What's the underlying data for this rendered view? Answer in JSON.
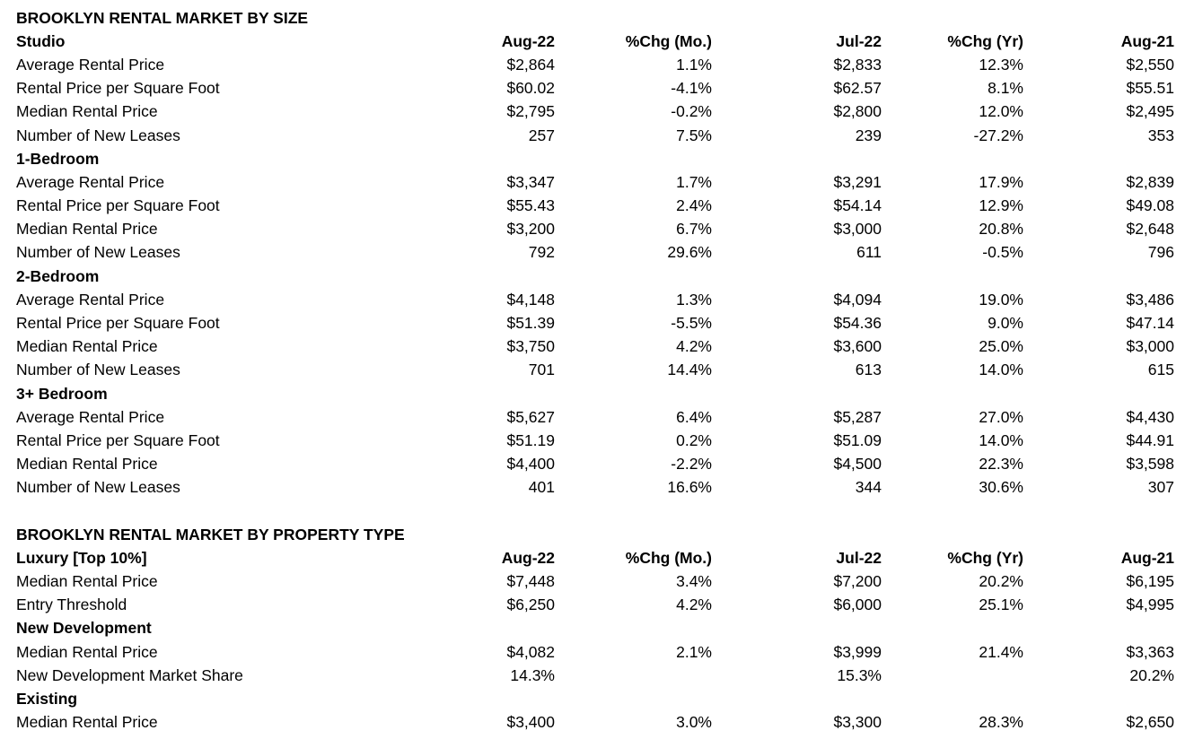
{
  "page": {
    "background_color": "#ffffff",
    "text_color": "#000000"
  },
  "tables": [
    {
      "title": "BROOKLYN RENTAL MARKET BY SIZE",
      "columns": [
        "Aug-22",
        "%Chg (Mo.)",
        "Jul-22",
        "%Chg (Yr)",
        "Aug-21"
      ],
      "rows": [
        {
          "type": "header",
          "label": "Studio",
          "values": [
            "Aug-22",
            "%Chg (Mo.)",
            "Jul-22",
            "%Chg (Yr)",
            "Aug-21"
          ]
        },
        {
          "type": "data",
          "label": "Average Rental Price",
          "values": [
            "$2,864",
            "1.1%",
            "$2,833",
            "12.3%",
            "$2,550"
          ]
        },
        {
          "type": "data",
          "label": "Rental Price per Square Foot",
          "values": [
            "$60.02",
            "-4.1%",
            "$62.57",
            "8.1%",
            "$55.51"
          ]
        },
        {
          "type": "data",
          "label": "Median Rental Price",
          "values": [
            "$2,795",
            "-0.2%",
            "$2,800",
            "12.0%",
            "$2,495"
          ]
        },
        {
          "type": "data",
          "label": "Number of New Leases",
          "values": [
            "257",
            "7.5%",
            "239",
            "-27.2%",
            "353"
          ]
        },
        {
          "type": "section",
          "label": "1-Bedroom",
          "values": [
            "",
            "",
            "",
            "",
            ""
          ]
        },
        {
          "type": "data",
          "label": "Average Rental Price",
          "values": [
            "$3,347",
            "1.7%",
            "$3,291",
            "17.9%",
            "$2,839"
          ]
        },
        {
          "type": "data",
          "label": "Rental Price per Square Foot",
          "values": [
            "$55.43",
            "2.4%",
            "$54.14",
            "12.9%",
            "$49.08"
          ]
        },
        {
          "type": "data",
          "label": "Median Rental Price",
          "values": [
            "$3,200",
            "6.7%",
            "$3,000",
            "20.8%",
            "$2,648"
          ]
        },
        {
          "type": "data",
          "label": "Number of New Leases",
          "values": [
            "792",
            "29.6%",
            "611",
            "-0.5%",
            "796"
          ]
        },
        {
          "type": "section",
          "label": "2-Bedroom",
          "values": [
            "",
            "",
            "",
            "",
            ""
          ]
        },
        {
          "type": "data",
          "label": "Average Rental Price",
          "values": [
            "$4,148",
            "1.3%",
            "$4,094",
            "19.0%",
            "$3,486"
          ]
        },
        {
          "type": "data",
          "label": "Rental Price per Square Foot",
          "values": [
            "$51.39",
            "-5.5%",
            "$54.36",
            "9.0%",
            "$47.14"
          ]
        },
        {
          "type": "data",
          "label": "Median Rental Price",
          "values": [
            "$3,750",
            "4.2%",
            "$3,600",
            "25.0%",
            "$3,000"
          ]
        },
        {
          "type": "data",
          "label": "Number of New Leases",
          "values": [
            "701",
            "14.4%",
            "613",
            "14.0%",
            "615"
          ]
        },
        {
          "type": "section",
          "label": "3+ Bedroom",
          "values": [
            "",
            "",
            "",
            "",
            ""
          ]
        },
        {
          "type": "data",
          "label": "Average Rental Price",
          "values": [
            "$5,627",
            "6.4%",
            "$5,287",
            "27.0%",
            "$4,430"
          ]
        },
        {
          "type": "data",
          "label": "Rental Price per Square Foot",
          "values": [
            "$51.19",
            "0.2%",
            "$51.09",
            "14.0%",
            "$44.91"
          ]
        },
        {
          "type": "data",
          "label": "Median Rental Price",
          "values": [
            "$4,400",
            "-2.2%",
            "$4,500",
            "22.3%",
            "$3,598"
          ]
        },
        {
          "type": "data",
          "label": "Number of New Leases",
          "values": [
            "401",
            "16.6%",
            "344",
            "30.6%",
            "307"
          ]
        }
      ]
    },
    {
      "title": "BROOKLYN RENTAL MARKET BY PROPERTY TYPE",
      "columns": [
        "Aug-22",
        "%Chg (Mo.)",
        "Jul-22",
        "%Chg (Yr)",
        "Aug-21"
      ],
      "rows": [
        {
          "type": "header",
          "label": "Luxury [Top 10%]",
          "values": [
            "Aug-22",
            "%Chg (Mo.)",
            "Jul-22",
            "%Chg (Yr)",
            "Aug-21"
          ]
        },
        {
          "type": "data",
          "label": "Median Rental Price",
          "values": [
            "$7,448",
            "3.4%",
            "$7,200",
            "20.2%",
            "$6,195"
          ]
        },
        {
          "type": "data",
          "label": "Entry Threshold",
          "values": [
            "$6,250",
            "4.2%",
            "$6,000",
            "25.1%",
            "$4,995"
          ]
        },
        {
          "type": "section",
          "label": "New Development",
          "values": [
            "",
            "",
            "",
            "",
            ""
          ]
        },
        {
          "type": "data",
          "label": "Median Rental Price",
          "values": [
            "$4,082",
            "2.1%",
            "$3,999",
            "21.4%",
            "$3,363"
          ]
        },
        {
          "type": "data",
          "label": "New Development Market Share",
          "values": [
            "14.3%",
            "",
            "15.3%",
            "",
            "20.2%"
          ]
        },
        {
          "type": "section",
          "label": "Existing",
          "values": [
            "",
            "",
            "",
            "",
            ""
          ]
        },
        {
          "type": "data",
          "label": "Median Rental Price",
          "values": [
            "$3,400",
            "3.0%",
            "$3,300",
            "28.3%",
            "$2,650"
          ]
        }
      ]
    }
  ]
}
